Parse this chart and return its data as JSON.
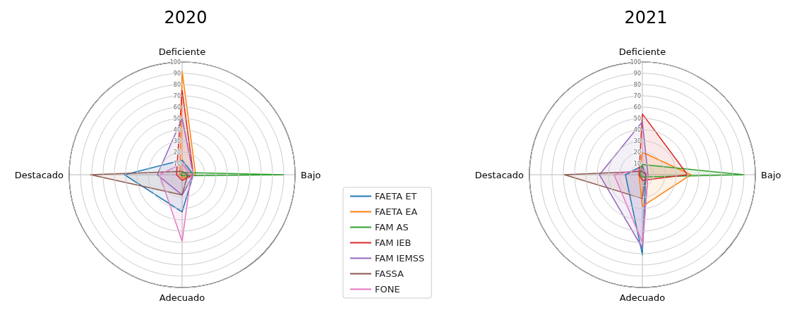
{
  "chart_data": [
    {
      "type": "radar",
      "title": "2020",
      "categories": [
        "Deficiente",
        "Bajo",
        "Adecuado",
        "Destacado"
      ],
      "ylim": [
        0,
        100
      ],
      "yticks": [
        10,
        20,
        30,
        40,
        50,
        60,
        70,
        80,
        90,
        100
      ],
      "legend": "right",
      "marker": "none",
      "series": [
        {
          "name": "FAETA ET",
          "color": "#1f77b4",
          "values": [
            13,
            10,
            33,
            51
          ]
        },
        {
          "name": "FAETA EA",
          "color": "#ff7f0e",
          "values": [
            92,
            12,
            3,
            2
          ]
        },
        {
          "name": "FAM AS",
          "color": "#2ca02c",
          "values": [
            2,
            90,
            1,
            1
          ]
        },
        {
          "name": "FAM IEB",
          "color": "#d62728",
          "values": [
            75,
            10,
            5,
            5
          ]
        },
        {
          "name": "FAM IEMSS",
          "color": "#9467bd",
          "values": [
            50,
            10,
            18,
            22
          ]
        },
        {
          "name": "FASSA",
          "color": "#8c564b",
          "values": [
            3,
            5,
            18,
            81
          ]
        },
        {
          "name": "FONE",
          "color": "#e377c2",
          "values": [
            10,
            8,
            59,
            20
          ]
        }
      ]
    },
    {
      "type": "radar",
      "title": "2021",
      "categories": [
        "Deficiente",
        "Bajo",
        "Adecuado",
        "Destacado"
      ],
      "ylim": [
        0,
        100
      ],
      "yticks": [
        10,
        20,
        30,
        40,
        50,
        60,
        70,
        80,
        90,
        100
      ],
      "marker": "none",
      "series": [
        {
          "color": "#1f77b4",
          "values": [
            8,
            3,
            71,
            15
          ]
        },
        {
          "color": "#ff7f0e",
          "values": [
            20,
            43,
            28,
            3
          ]
        },
        {
          "color": "#2ca02c",
          "values": [
            9,
            90,
            2,
            2
          ]
        },
        {
          "color": "#d62728",
          "values": [
            54,
            40,
            5,
            3
          ]
        },
        {
          "color": "#9467bd",
          "values": [
            47,
            5,
            65,
            38
          ]
        },
        {
          "color": "#8c564b",
          "values": [
            3,
            3,
            21,
            69
          ]
        },
        {
          "color": "#e377c2",
          "values": [
            5,
            5,
            60,
            25
          ]
        }
      ]
    }
  ]
}
